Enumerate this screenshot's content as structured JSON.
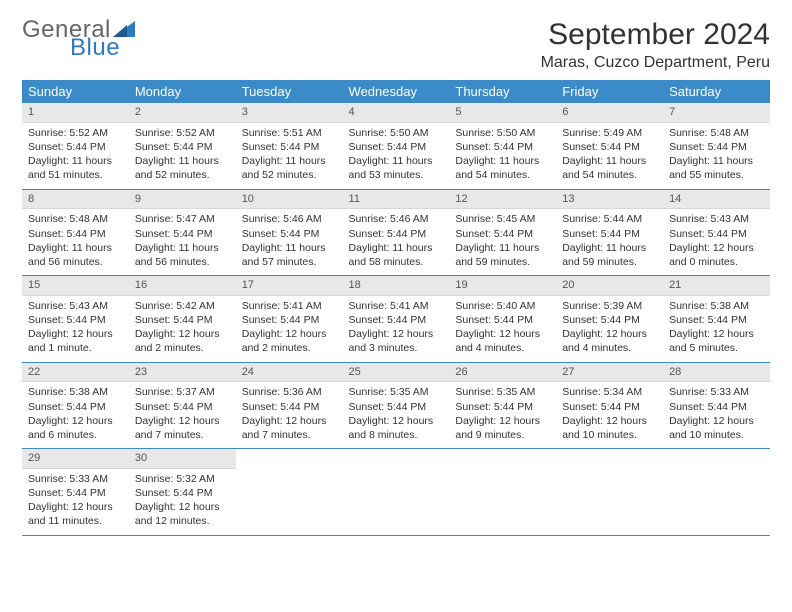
{
  "logo": {
    "text1": "General",
    "text2": "Blue"
  },
  "title": "September 2024",
  "location": "Maras, Cuzco Department, Peru",
  "colors": {
    "header_bg": "#3b8bc9",
    "header_text": "#ffffff",
    "daynum_bg": "#e8e8e8",
    "divider": "#3b8bc9",
    "logo_gray": "#666666",
    "logo_blue": "#2f7bbf"
  },
  "weekdays": [
    "Sunday",
    "Monday",
    "Tuesday",
    "Wednesday",
    "Thursday",
    "Friday",
    "Saturday"
  ],
  "weeks": [
    [
      {
        "n": "1",
        "sr": "Sunrise: 5:52 AM",
        "ss": "Sunset: 5:44 PM",
        "dl1": "Daylight: 11 hours",
        "dl2": "and 51 minutes."
      },
      {
        "n": "2",
        "sr": "Sunrise: 5:52 AM",
        "ss": "Sunset: 5:44 PM",
        "dl1": "Daylight: 11 hours",
        "dl2": "and 52 minutes."
      },
      {
        "n": "3",
        "sr": "Sunrise: 5:51 AM",
        "ss": "Sunset: 5:44 PM",
        "dl1": "Daylight: 11 hours",
        "dl2": "and 52 minutes."
      },
      {
        "n": "4",
        "sr": "Sunrise: 5:50 AM",
        "ss": "Sunset: 5:44 PM",
        "dl1": "Daylight: 11 hours",
        "dl2": "and 53 minutes."
      },
      {
        "n": "5",
        "sr": "Sunrise: 5:50 AM",
        "ss": "Sunset: 5:44 PM",
        "dl1": "Daylight: 11 hours",
        "dl2": "and 54 minutes."
      },
      {
        "n": "6",
        "sr": "Sunrise: 5:49 AM",
        "ss": "Sunset: 5:44 PM",
        "dl1": "Daylight: 11 hours",
        "dl2": "and 54 minutes."
      },
      {
        "n": "7",
        "sr": "Sunrise: 5:48 AM",
        "ss": "Sunset: 5:44 PM",
        "dl1": "Daylight: 11 hours",
        "dl2": "and 55 minutes."
      }
    ],
    [
      {
        "n": "8",
        "sr": "Sunrise: 5:48 AM",
        "ss": "Sunset: 5:44 PM",
        "dl1": "Daylight: 11 hours",
        "dl2": "and 56 minutes."
      },
      {
        "n": "9",
        "sr": "Sunrise: 5:47 AM",
        "ss": "Sunset: 5:44 PM",
        "dl1": "Daylight: 11 hours",
        "dl2": "and 56 minutes."
      },
      {
        "n": "10",
        "sr": "Sunrise: 5:46 AM",
        "ss": "Sunset: 5:44 PM",
        "dl1": "Daylight: 11 hours",
        "dl2": "and 57 minutes."
      },
      {
        "n": "11",
        "sr": "Sunrise: 5:46 AM",
        "ss": "Sunset: 5:44 PM",
        "dl1": "Daylight: 11 hours",
        "dl2": "and 58 minutes."
      },
      {
        "n": "12",
        "sr": "Sunrise: 5:45 AM",
        "ss": "Sunset: 5:44 PM",
        "dl1": "Daylight: 11 hours",
        "dl2": "and 59 minutes."
      },
      {
        "n": "13",
        "sr": "Sunrise: 5:44 AM",
        "ss": "Sunset: 5:44 PM",
        "dl1": "Daylight: 11 hours",
        "dl2": "and 59 minutes."
      },
      {
        "n": "14",
        "sr": "Sunrise: 5:43 AM",
        "ss": "Sunset: 5:44 PM",
        "dl1": "Daylight: 12 hours",
        "dl2": "and 0 minutes."
      }
    ],
    [
      {
        "n": "15",
        "sr": "Sunrise: 5:43 AM",
        "ss": "Sunset: 5:44 PM",
        "dl1": "Daylight: 12 hours",
        "dl2": "and 1 minute."
      },
      {
        "n": "16",
        "sr": "Sunrise: 5:42 AM",
        "ss": "Sunset: 5:44 PM",
        "dl1": "Daylight: 12 hours",
        "dl2": "and 2 minutes."
      },
      {
        "n": "17",
        "sr": "Sunrise: 5:41 AM",
        "ss": "Sunset: 5:44 PM",
        "dl1": "Daylight: 12 hours",
        "dl2": "and 2 minutes."
      },
      {
        "n": "18",
        "sr": "Sunrise: 5:41 AM",
        "ss": "Sunset: 5:44 PM",
        "dl1": "Daylight: 12 hours",
        "dl2": "and 3 minutes."
      },
      {
        "n": "19",
        "sr": "Sunrise: 5:40 AM",
        "ss": "Sunset: 5:44 PM",
        "dl1": "Daylight: 12 hours",
        "dl2": "and 4 minutes."
      },
      {
        "n": "20",
        "sr": "Sunrise: 5:39 AM",
        "ss": "Sunset: 5:44 PM",
        "dl1": "Daylight: 12 hours",
        "dl2": "and 4 minutes."
      },
      {
        "n": "21",
        "sr": "Sunrise: 5:38 AM",
        "ss": "Sunset: 5:44 PM",
        "dl1": "Daylight: 12 hours",
        "dl2": "and 5 minutes."
      }
    ],
    [
      {
        "n": "22",
        "sr": "Sunrise: 5:38 AM",
        "ss": "Sunset: 5:44 PM",
        "dl1": "Daylight: 12 hours",
        "dl2": "and 6 minutes."
      },
      {
        "n": "23",
        "sr": "Sunrise: 5:37 AM",
        "ss": "Sunset: 5:44 PM",
        "dl1": "Daylight: 12 hours",
        "dl2": "and 7 minutes."
      },
      {
        "n": "24",
        "sr": "Sunrise: 5:36 AM",
        "ss": "Sunset: 5:44 PM",
        "dl1": "Daylight: 12 hours",
        "dl2": "and 7 minutes."
      },
      {
        "n": "25",
        "sr": "Sunrise: 5:35 AM",
        "ss": "Sunset: 5:44 PM",
        "dl1": "Daylight: 12 hours",
        "dl2": "and 8 minutes."
      },
      {
        "n": "26",
        "sr": "Sunrise: 5:35 AM",
        "ss": "Sunset: 5:44 PM",
        "dl1": "Daylight: 12 hours",
        "dl2": "and 9 minutes."
      },
      {
        "n": "27",
        "sr": "Sunrise: 5:34 AM",
        "ss": "Sunset: 5:44 PM",
        "dl1": "Daylight: 12 hours",
        "dl2": "and 10 minutes."
      },
      {
        "n": "28",
        "sr": "Sunrise: 5:33 AM",
        "ss": "Sunset: 5:44 PM",
        "dl1": "Daylight: 12 hours",
        "dl2": "and 10 minutes."
      }
    ],
    [
      {
        "n": "29",
        "sr": "Sunrise: 5:33 AM",
        "ss": "Sunset: 5:44 PM",
        "dl1": "Daylight: 12 hours",
        "dl2": "and 11 minutes."
      },
      {
        "n": "30",
        "sr": "Sunrise: 5:32 AM",
        "ss": "Sunset: 5:44 PM",
        "dl1": "Daylight: 12 hours",
        "dl2": "and 12 minutes."
      },
      null,
      null,
      null,
      null,
      null
    ]
  ]
}
